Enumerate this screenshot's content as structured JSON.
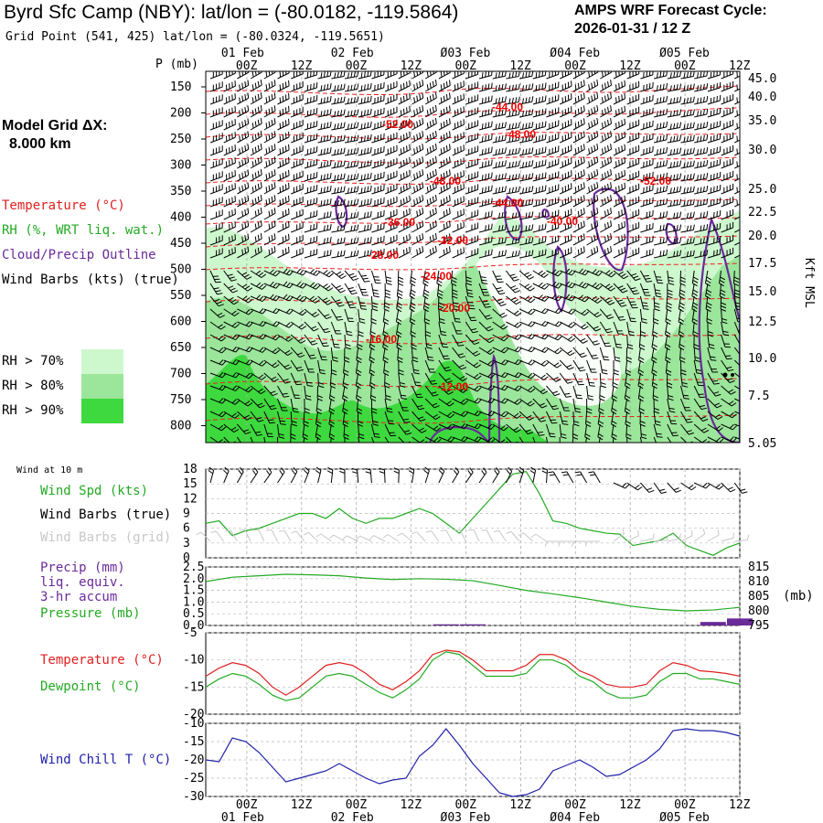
{
  "header": {
    "station": "Byrd Sfc Camp (NBY):  lat/lon = (-80.0182, -119.5864)",
    "grid_point": "Grid Point (541, 425) lat/lon = (-80.0324, -119.5651)",
    "forecast_line1": "AMPS WRF Forecast Cycle:",
    "forecast_line2": "2026-01-31 / 12  Z"
  },
  "model_grid": {
    "line1": "Model Grid ΔX:",
    "line2": "8.000 km"
  },
  "legend": {
    "temperature": "Temperature (°C)",
    "rh": "RH (%, WRT liq. wat.)",
    "cloud": "Cloud/Precip Outline",
    "wind": "Wind Barbs (kts) (true)",
    "rh70": "RH > 70%",
    "rh80": "RH > 80%",
    "rh90": "RH > 90%",
    "colors": {
      "rh70": "#cdf7cd",
      "rh80": "#9be69b",
      "rh90": "#3ed93e",
      "temp": "#ee2020",
      "cloud": "#6a2a9a"
    }
  },
  "time_axis": {
    "top_date_labels": [
      "01 Feb",
      "02 Feb",
      "Ø03 Feb",
      "Ø04 Feb",
      "Ø05 Feb"
    ],
    "bottom_date_labels": [
      "01 Feb",
      "02 Feb",
      "Ø03 Feb",
      "Ø04 Feb",
      "Ø05 Feb"
    ],
    "hour_labels": [
      "00Z",
      "12Z",
      "00Z",
      "12Z",
      "00Z",
      "12Z",
      "00Z",
      "12Z",
      "00Z",
      "12Z"
    ]
  },
  "profile": {
    "p_axis_label": "P (mb)",
    "pressure_labels": [
      "150",
      "200",
      "250",
      "300",
      "350",
      "400",
      "450",
      "500",
      "550",
      "600",
      "650",
      "700",
      "750",
      "800"
    ],
    "height_labels": [
      "45.0",
      "40.0",
      "35.0",
      "30.0",
      "25.0",
      "22.5",
      "20.0",
      "17.5",
      "15.0",
      "12.5",
      "10.0",
      "7.5",
      "5.05"
    ],
    "height_axis_label": "Kft MSL",
    "temp_contour_labels": [
      "-44.00",
      "-52.00",
      "-48.00",
      "-48.00",
      "-52.00",
      "-44.00",
      "-36.00",
      "-40.00",
      "-32.00",
      "-28.00",
      "-24.00",
      "-20.00",
      "-16.00",
      "-12.00"
    ]
  },
  "wind_panel": {
    "title": "Wind at 10 m",
    "legend_speed": "Wind Spd (kts)",
    "legend_barbs_true": "Wind Barbs (true)",
    "legend_barbs_grid": "Wind Barbs (grid)",
    "yticks": [
      "18",
      "15",
      "12",
      "9",
      "6",
      "3",
      "0"
    ]
  },
  "precip_panel": {
    "legend_precip1": "Precip (mm)",
    "legend_precip2": "liq. equiv.",
    "legend_precip3": "3-hr accum",
    "legend_pressure": "Pressure (mb)",
    "yticks_left": [
      "2.5",
      "2.0",
      "1.5",
      "1.0",
      "0.5",
      "0.0"
    ],
    "yticks_right": [
      "815",
      "810",
      "805",
      "800",
      "795"
    ],
    "right_unit": "(mb)"
  },
  "temp_panel": {
    "legend_temp": "Temperature (°C)",
    "legend_dew": "Dewpoint (°C)",
    "yticks": [
      "-5",
      "-10",
      "-15",
      "-20"
    ]
  },
  "chill_panel": {
    "legend": "Wind Chill T (°C)",
    "yticks": [
      "-10",
      "-15",
      "-20",
      "-25",
      "-30"
    ]
  },
  "chart_data": [
    {
      "type": "line",
      "title": "Wind at 10 m",
      "x_hours": [
        0,
        3,
        6,
        9,
        12,
        15,
        18,
        21,
        24,
        27,
        30,
        33,
        36,
        39,
        42,
        45,
        48,
        51,
        54,
        57,
        60,
        63,
        66,
        69,
        72,
        75,
        78,
        81,
        84,
        87,
        90,
        93,
        96,
        99,
        102,
        105,
        108,
        111,
        114,
        117,
        120
      ],
      "series": [
        {
          "name": "Wind Spd (kts)",
          "values": [
            7,
            7.5,
            4.5,
            5.5,
            6,
            7,
            8,
            9,
            9,
            8,
            10,
            8,
            7,
            8,
            8,
            9,
            10,
            9,
            7,
            5,
            8,
            11,
            14,
            17,
            17.5,
            13,
            7.5,
            7,
            6,
            5.5,
            5,
            4.8,
            2.5,
            3,
            3.5,
            5,
            2.5,
            1.5,
            0.5,
            2,
            3
          ]
        }
      ],
      "ylim": [
        0,
        18
      ],
      "ylabel": "Wind Spd (kts)"
    },
    {
      "type": "line",
      "title": "Pressure (mb) / Precip (mm)",
      "x_hours": [
        0,
        6,
        12,
        18,
        24,
        30,
        36,
        42,
        48,
        54,
        60,
        66,
        72,
        78,
        84,
        90,
        96,
        102,
        108,
        114,
        120
      ],
      "series": [
        {
          "name": "Pressure (mb)",
          "values": [
            810,
            811.5,
            812,
            812.5,
            812.3,
            812,
            811.2,
            810.7,
            811,
            810.8,
            810.3,
            808.7,
            807,
            805.8,
            804.5,
            803,
            801.5,
            800.5,
            800,
            800.3,
            801.2
          ]
        },
        {
          "name": "Precip (mm)",
          "values": [
            0,
            0,
            0,
            0,
            0,
            0,
            0,
            0,
            0,
            0.05,
            0.05,
            0,
            0,
            0,
            0,
            0,
            0,
            0,
            0,
            0.15,
            0.3
          ]
        }
      ],
      "ylim": [
        0,
        2.5
      ],
      "ylim_right": [
        795,
        815
      ]
    },
    {
      "type": "line",
      "title": "Temperature / Dewpoint",
      "x_hours": [
        0,
        3,
        6,
        9,
        12,
        15,
        18,
        21,
        24,
        27,
        30,
        33,
        36,
        39,
        42,
        45,
        48,
        51,
        54,
        57,
        60,
        63,
        66,
        69,
        72,
        75,
        78,
        81,
        84,
        87,
        90,
        93,
        96,
        99,
        102,
        105,
        108,
        111,
        114,
        117,
        120
      ],
      "series": [
        {
          "name": "Temperature (°C)",
          "values": [
            -13,
            -11.5,
            -10.5,
            -11,
            -12.5,
            -15,
            -16.5,
            -15,
            -13,
            -11,
            -10.5,
            -11,
            -12.5,
            -14.5,
            -15.5,
            -14,
            -12,
            -9,
            -8.2,
            -8.5,
            -10,
            -12,
            -12,
            -12,
            -11,
            -9,
            -9,
            -10,
            -12,
            -13,
            -14.5,
            -15,
            -15,
            -14.5,
            -12,
            -10.5,
            -11,
            -12,
            -12.2,
            -12.5,
            -13
          ]
        },
        {
          "name": "Dewpoint (°C)",
          "values": [
            -15,
            -13.5,
            -12.5,
            -13,
            -14.5,
            -16.5,
            -17.5,
            -17,
            -15,
            -13,
            -12.5,
            -13,
            -14.5,
            -16,
            -17,
            -15.5,
            -13.5,
            -10,
            -8.5,
            -9,
            -11,
            -13,
            -13,
            -13,
            -12.5,
            -10,
            -10,
            -11,
            -13,
            -14,
            -16,
            -17,
            -17,
            -16.5,
            -14,
            -12.5,
            -12.5,
            -13.5,
            -13.5,
            -14,
            -14.5
          ]
        }
      ],
      "ylim": [
        -20,
        -5
      ]
    },
    {
      "type": "line",
      "title": "Wind Chill T",
      "x_hours": [
        0,
        3,
        6,
        9,
        12,
        15,
        18,
        21,
        24,
        27,
        30,
        33,
        36,
        39,
        42,
        45,
        48,
        51,
        54,
        57,
        60,
        63,
        66,
        69,
        72,
        75,
        78,
        81,
        84,
        87,
        90,
        93,
        96,
        99,
        102,
        105,
        108,
        111,
        114,
        117,
        120
      ],
      "series": [
        {
          "name": "Wind Chill T (°C)",
          "values": [
            -20,
            -20.5,
            -14,
            -15,
            -18,
            -22,
            -26,
            -25,
            -24,
            -23,
            -21,
            -23,
            -25,
            -26.5,
            -25.5,
            -25,
            -19,
            -16,
            -11.5,
            -16,
            -21,
            -25,
            -29,
            -30,
            -29.5,
            -28,
            -23,
            -21.5,
            -20,
            -22,
            -24.5,
            -24,
            -22,
            -20,
            -17,
            -12,
            -11.5,
            -12,
            -12,
            -12.5,
            -13.5
          ]
        }
      ],
      "ylim": [
        -30,
        -10
      ]
    }
  ]
}
